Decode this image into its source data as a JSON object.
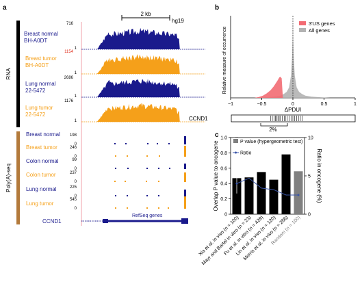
{
  "panels": {
    "a": {
      "label": "a",
      "scale_bar": "2 kb",
      "assembly": "hg19",
      "group_rna": "RNA",
      "group_polya": "Poly(A)-seq",
      "rna_tracks": [
        {
          "name_lines": [
            "Breast normal",
            "BH-A0DT"
          ],
          "max": "716",
          "min": "1",
          "color": "#1a1a8c"
        },
        {
          "name_lines": [
            "Breast tumor",
            "BH-A0DT"
          ],
          "max": "1154",
          "min": "1",
          "color": "#f5a01a"
        },
        {
          "name_lines": [
            "Lung normal",
            "22-5472"
          ],
          "max": "2686",
          "min": "1",
          "color": "#1a1a8c"
        },
        {
          "name_lines": [
            "Lung tumor",
            "22-5472"
          ],
          "max": "1176",
          "min": "1",
          "color": "#f5a01a"
        }
      ],
      "polya_tracks": [
        {
          "name": "Breast normal",
          "max": "198",
          "min": "0",
          "color": "#1a1a8c"
        },
        {
          "name": "Breast tumor",
          "max": "246",
          "min": "0",
          "color": "#f5a01a"
        },
        {
          "name": "Colon normal",
          "max": "99",
          "min": "0",
          "color": "#1a1a8c"
        },
        {
          "name": "Colon tumor",
          "max": "237",
          "min": "0",
          "color": "#f5a01a"
        },
        {
          "name": "Lung normal",
          "max": "225",
          "min": "0",
          "color": "#1a1a8c"
        },
        {
          "name": "Lung tumor",
          "max": "545",
          "min": "0",
          "color": "#f5a01a"
        }
      ],
      "gene_label": "CCND1",
      "gene_track_label": "RefSeq genes"
    },
    "b": {
      "label": "b",
      "gene_label": "CCND1",
      "bracket_label": "2%"
    },
    "c": {
      "label": "c"
    }
  },
  "chart_data": [
    {
      "type": "area",
      "title": "",
      "xlabel": "ΔPDUI",
      "ylabel": "Relative measure of occurrence",
      "xlim": [
        -1,
        1
      ],
      "xticks": [
        "−1",
        "−0.5",
        "0",
        "0.5",
        "1"
      ],
      "series": [
        {
          "name": "3′US genes",
          "color": "#f26b73",
          "x": [
            -0.62,
            -0.55,
            -0.48,
            -0.42,
            -0.36,
            -0.31,
            -0.27,
            -0.24,
            -0.22,
            -0.2,
            -0.18,
            -0.16
          ],
          "values": [
            0.0,
            0.01,
            0.03,
            0.06,
            0.1,
            0.15,
            0.2,
            0.24,
            0.27,
            0.28,
            0.26,
            0.0
          ]
        },
        {
          "name": "All genes",
          "color": "#b3b3b3",
          "x": [
            -1.0,
            -0.6,
            -0.4,
            -0.3,
            -0.2,
            -0.15,
            -0.1,
            -0.06,
            -0.03,
            -0.01,
            0.0,
            0.01,
            0.03,
            0.06,
            0.1,
            0.15,
            0.2,
            0.3,
            0.4,
            0.6,
            1.0
          ],
          "values": [
            0.0,
            0.0,
            0.01,
            0.015,
            0.03,
            0.05,
            0.08,
            0.14,
            0.3,
            0.6,
            1.0,
            0.6,
            0.3,
            0.14,
            0.08,
            0.05,
            0.03,
            0.015,
            0.01,
            0.0,
            0.0
          ]
        }
      ],
      "ccnd1_ticks": [
        -0.36,
        -0.33,
        -0.3,
        -0.28,
        -0.26,
        -0.24,
        -0.22,
        -0.2,
        -0.17,
        -0.14,
        -0.12,
        -0.09,
        -0.06,
        -0.03,
        0.0,
        0.03,
        0.06,
        0.09,
        0.12,
        0.15
      ],
      "legend": "top-right"
    },
    {
      "type": "bar",
      "title": "",
      "ylabel": "Overlap P value to oncogene",
      "y2label": "Ratio in oncogene (%)",
      "ylim": [
        0,
        1
      ],
      "y2lim": [
        0,
        10
      ],
      "yticks": [
        "0",
        "0.2",
        "0.4",
        "0.6",
        "0.8",
        "1.0"
      ],
      "y2ticks": [
        "0",
        "5",
        "10"
      ],
      "categories": [
        "Xia et al. in vivo (n = 100)",
        "Mayr and Bartel in vitro (n = 23)",
        "Fu et al. in vitro (n = 428)",
        "Lin et al. in vivo (n = 120)",
        "Morris et al. in vivo (n = 286)",
        "Random (n = 100)"
      ],
      "series": [
        {
          "name": "P value (hypergeometric test)",
          "values": [
            0.47,
            0.48,
            0.55,
            0.45,
            0.78,
            0.56
          ],
          "colors": [
            "#000000",
            "#000000",
            "#000000",
            "#000000",
            "#000000",
            "#808080"
          ]
        },
        {
          "name": "Ratio",
          "axis": "right",
          "values": [
            4.0,
            4.7,
            3.4,
            3.2,
            2.5,
            2.5
          ],
          "color": "#3a56a8"
        }
      ],
      "random_error": [
        0.27,
        1.0
      ],
      "legend": "top-left"
    }
  ]
}
